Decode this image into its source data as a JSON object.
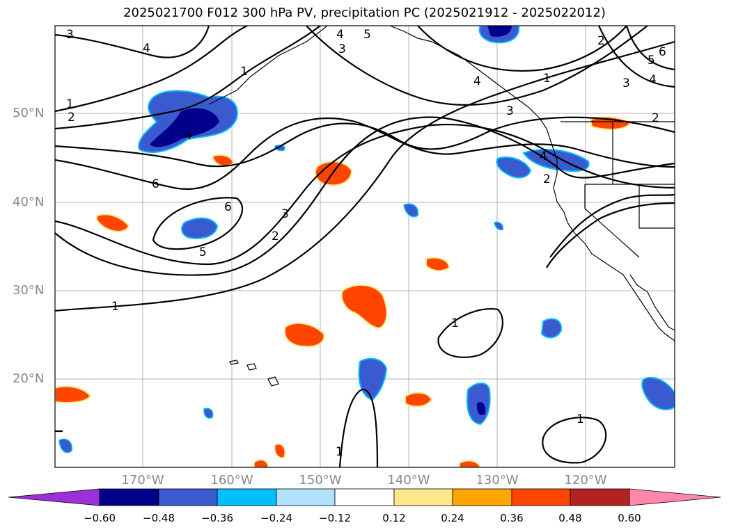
{
  "title": "2025021700 F012 300 hPa PV, precipitation PC (2025021912 - 2025022012)",
  "latitude_labels": [
    "50°N",
    "40°N",
    "30°N",
    "20°N"
  ],
  "longitude_labels": [
    "170°W",
    "160°W",
    "150°W",
    "140°W",
    "130°W",
    "120°W"
  ],
  "contour_labels": [
    "1",
    "2",
    "3",
    "4",
    "5",
    "6"
  ],
  "colorbar": {
    "ticks": [
      "−0.60",
      "−0.48",
      "−0.36",
      "−0.24",
      "−0.12",
      "0.12",
      "0.24",
      "0.36",
      "0.48",
      "0.60"
    ],
    "colors": [
      "#9b30d9",
      "#00008b",
      "#3a5bd0",
      "#00bfff",
      "#b0e2ff",
      "#ffffff",
      "#ffe88c",
      "#ffa500",
      "#ff4500",
      "#b22222",
      "#ff88aa"
    ]
  },
  "colors": {
    "gridline": "#b0b0b0",
    "contour": "#000000",
    "coast": "#000000"
  }
}
